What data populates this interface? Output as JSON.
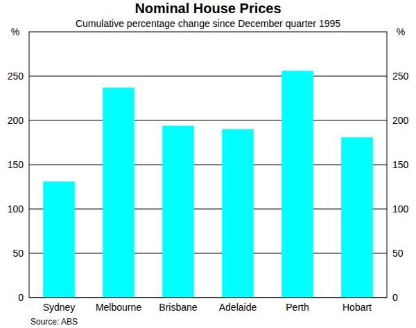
{
  "chart_data": {
    "type": "bar",
    "title": "Nominal House Prices",
    "subtitle": "Cumulative percentage change since December quarter 1995",
    "ylabel": "%",
    "source": "Source: ABS",
    "categories": [
      "Sydney",
      "Melbourne",
      "Brisbane",
      "Adelaide",
      "Perth",
      "Hobart"
    ],
    "values": [
      131,
      237,
      194,
      190,
      256,
      181
    ],
    "color": "#00ffff",
    "ylim": [
      0,
      300
    ],
    "yticks": [
      0,
      50,
      100,
      150,
      200,
      250
    ],
    "grid": true
  }
}
